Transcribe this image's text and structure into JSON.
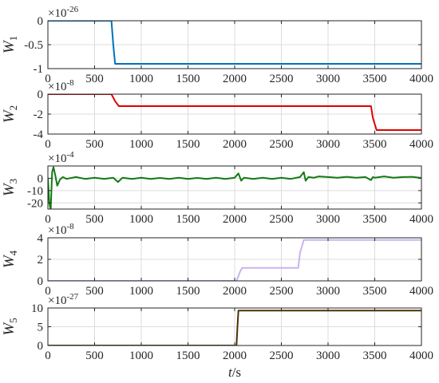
{
  "chart_data": {
    "type": "line",
    "xlabel_var": "t",
    "xlabel_unit": "/s",
    "panels": [
      {
        "ylabel_main": "W",
        "ylabel_sub": "1",
        "exponent_base": "×10",
        "exponent_power": "-26",
        "xlim": [
          0,
          4000
        ],
        "ylim": [
          -1,
          0
        ],
        "xticks": [
          0,
          500,
          1000,
          1500,
          2000,
          2500,
          3000,
          3500,
          4000
        ],
        "xtick_labels": [
          "0",
          "500",
          "1000",
          "1500",
          "2000",
          "2500",
          "3000",
          "3500",
          "4000"
        ],
        "yticks": [
          0,
          -0.5,
          -1
        ],
        "ytick_labels": [
          "0",
          "-0.5",
          "-1"
        ],
        "color": "#0072BD",
        "series": [
          {
            "x": [
              0,
              680,
              700,
              720,
              4000
            ],
            "y": [
              0,
              0,
              -0.5,
              -0.9,
              -0.9
            ]
          }
        ]
      },
      {
        "ylabel_main": "W",
        "ylabel_sub": "2",
        "exponent_base": "×10",
        "exponent_power": "-8",
        "xlim": [
          0,
          4000
        ],
        "ylim": [
          -4,
          0
        ],
        "xticks": [
          0,
          500,
          1000,
          1500,
          2000,
          2500,
          3000,
          3500,
          4000
        ],
        "xtick_labels": [
          "0",
          "500",
          "1000",
          "1500",
          "2000",
          "2500",
          "3000",
          "3500",
          "4000"
        ],
        "yticks": [
          0,
          -2,
          -4
        ],
        "ytick_labels": [
          "0",
          "-2",
          "-4"
        ],
        "color": "#E00000",
        "series": [
          {
            "x": [
              0,
              680,
              720,
              760,
              3460,
              3480,
              3520,
              4000
            ],
            "y": [
              0,
              0,
              -0.7,
              -1.2,
              -1.2,
              -2.4,
              -3.6,
              -3.6
            ]
          }
        ]
      },
      {
        "ylabel_main": "W",
        "ylabel_sub": "3",
        "exponent_base": "×10",
        "exponent_power": "-4",
        "xlim": [
          0,
          4000
        ],
        "ylim": [
          -25,
          10
        ],
        "xticks": [
          0,
          500,
          1000,
          1500,
          2000,
          2500,
          3000,
          3500,
          4000
        ],
        "xtick_labels": [
          "0",
          "500",
          "1000",
          "1500",
          "2000",
          "2500",
          "3000",
          "3500",
          "4000"
        ],
        "yticks": [
          0,
          -10,
          -20
        ],
        "ytick_labels": [
          "0",
          "-10",
          "-20"
        ],
        "color": "#137A13",
        "series": [
          {
            "x": [
              0,
              15,
              30,
              45,
              60,
              80,
              100,
              130,
              160,
              200,
              300,
              400,
              500,
              600,
              700,
              750,
              800,
              900,
              1000,
              1100,
              1200,
              1300,
              1400,
              1500,
              1600,
              1700,
              1800,
              1900,
              2000,
              2040,
              2070,
              2100,
              2200,
              2300,
              2400,
              2500,
              2600,
              2700,
              2740,
              2760,
              2790,
              2850,
              2900,
              3000,
              3100,
              3200,
              3300,
              3400,
              3460,
              3480,
              3500,
              3600,
              3700,
              3800,
              3900,
              4000
            ],
            "y": [
              0,
              -20,
              -26,
              5,
              9,
              2,
              -6,
              -1,
              1,
              -0.5,
              1,
              -0.5,
              0.5,
              -0.5,
              0.5,
              -3,
              0.5,
              -0.5,
              0.5,
              -0.5,
              0.3,
              -0.5,
              0.5,
              -0.5,
              0.3,
              -0.5,
              0.5,
              -0.5,
              0.5,
              4,
              -2,
              0.5,
              -0.5,
              0.5,
              -0.5,
              0.5,
              -0.5,
              1,
              5,
              -2,
              1,
              0.5,
              1.5,
              1,
              0.5,
              1.2,
              0.5,
              1,
              -1.5,
              1,
              0.5,
              1.5,
              0.5,
              1,
              1.2,
              0.3
            ]
          }
        ]
      },
      {
        "ylabel_main": "W",
        "ylabel_sub": "4",
        "exponent_base": "×10",
        "exponent_power": "-8",
        "xlim": [
          0,
          4000
        ],
        "ylim": [
          0,
          4
        ],
        "xticks": [
          0,
          500,
          1000,
          1500,
          2000,
          2500,
          3000,
          3500,
          4000
        ],
        "xtick_labels": [
          "0",
          "500",
          "1000",
          "1500",
          "2000",
          "2500",
          "3000",
          "3500",
          "4000"
        ],
        "yticks": [
          4,
          2,
          0
        ],
        "ytick_labels": [
          "4",
          "2",
          "0"
        ],
        "color": "#C8B4F0",
        "series": [
          {
            "x": [
              0,
              2020,
              2060,
              2080,
              2680,
              2700,
              2740,
              4000
            ],
            "y": [
              0,
              0,
              0.9,
              1.2,
              1.2,
              2.6,
              3.8,
              3.8
            ]
          }
        ]
      },
      {
        "ylabel_main": "W",
        "ylabel_sub": "5",
        "exponent_base": "×10",
        "exponent_power": "-27",
        "xlim": [
          0,
          4000
        ],
        "ylim": [
          0,
          10
        ],
        "xticks": [
          0,
          500,
          1000,
          1500,
          2000,
          2500,
          3000,
          3500,
          4000
        ],
        "xtick_labels": [
          "0",
          "500",
          "1000",
          "1500",
          "2000",
          "2500",
          "3000",
          "3500",
          "4000"
        ],
        "yticks": [
          10,
          5,
          0
        ],
        "ytick_labels": [
          "10",
          "5",
          "0"
        ],
        "color": "#4A3205",
        "series": [
          {
            "x": [
              0,
              2020,
              2030,
              2040,
              4000
            ],
            "y": [
              0,
              0,
              5,
              9.3,
              9.3
            ]
          }
        ]
      }
    ]
  }
}
